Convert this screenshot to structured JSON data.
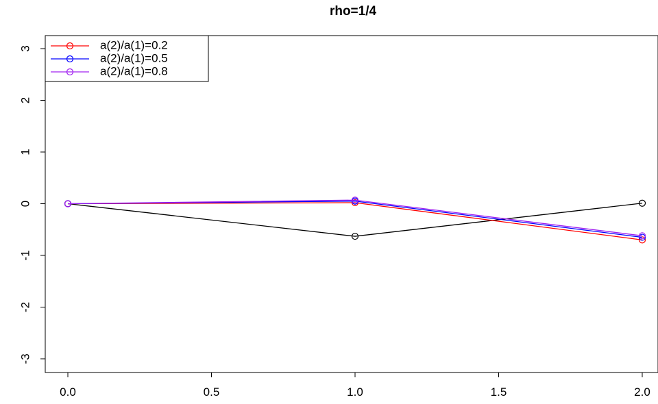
{
  "chart_data": {
    "type": "line",
    "title": "rho=1/4",
    "xlabel": "",
    "ylabel": "",
    "xlim": [
      0,
      2
    ],
    "ylim": [
      -3,
      3
    ],
    "x_ticks": [
      "0.0",
      "0.5",
      "1.0",
      "1.5",
      "2.0"
    ],
    "y_ticks": [
      "-3",
      "-2",
      "-1",
      "0",
      "1",
      "2",
      "3"
    ],
    "x": [
      0,
      1,
      2
    ],
    "series": [
      {
        "color": "#000000",
        "values": [
          0,
          -0.63,
          0.01
        ]
      },
      {
        "name": "a(2)/a(1)=0.2",
        "color": "#ff0000",
        "values": [
          0,
          0.02,
          -0.7
        ]
      },
      {
        "name": "a(2)/a(1)=0.5",
        "color": "#0000ff",
        "values": [
          0,
          0.05,
          -0.65
        ]
      },
      {
        "name": "a(2)/a(1)=0.8",
        "color": "#a020f0",
        "values": [
          0,
          0.07,
          -0.62
        ]
      }
    ],
    "legend_position": "top-left",
    "grid": false,
    "markers": "open-circle"
  }
}
